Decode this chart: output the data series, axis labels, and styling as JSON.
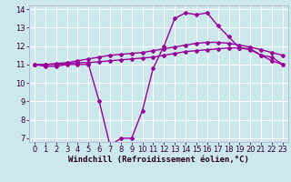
{
  "x": [
    0,
    1,
    2,
    3,
    4,
    5,
    6,
    7,
    8,
    9,
    10,
    11,
    12,
    13,
    14,
    15,
    16,
    17,
    18,
    19,
    20,
    21,
    22,
    23
  ],
  "line1": [
    11.0,
    10.9,
    10.9,
    11.0,
    11.0,
    11.0,
    9.0,
    6.6,
    7.0,
    7.0,
    8.5,
    10.8,
    12.0,
    13.5,
    13.8,
    13.7,
    13.8,
    13.1,
    12.5,
    11.9,
    11.8,
    11.5,
    11.4,
    11.0
  ],
  "line2": [
    11.0,
    11.0,
    11.0,
    11.05,
    11.1,
    11.1,
    11.15,
    11.2,
    11.25,
    11.3,
    11.35,
    11.4,
    11.5,
    11.6,
    11.7,
    11.75,
    11.8,
    11.85,
    11.9,
    11.9,
    11.85,
    11.5,
    11.2,
    11.0
  ],
  "line3": [
    11.0,
    11.0,
    11.05,
    11.1,
    11.2,
    11.3,
    11.4,
    11.5,
    11.55,
    11.6,
    11.65,
    11.75,
    11.85,
    11.95,
    12.05,
    12.15,
    12.2,
    12.2,
    12.15,
    12.05,
    11.95,
    11.8,
    11.65,
    11.5
  ],
  "color": "#990099",
  "bg_color": "#cce8ec",
  "grid_color": "#ffffff",
  "xlabel": "Windchill (Refroidissement éolien,°C)",
  "ylim": [
    6.8,
    14.2
  ],
  "xlim": [
    -0.5,
    23.5
  ],
  "yticks": [
    7,
    8,
    9,
    10,
    11,
    12,
    13,
    14
  ],
  "xticks": [
    0,
    1,
    2,
    3,
    4,
    5,
    6,
    7,
    8,
    9,
    10,
    11,
    12,
    13,
    14,
    15,
    16,
    17,
    18,
    19,
    20,
    21,
    22,
    23
  ],
  "marker": "D",
  "markersize": 2.0,
  "linewidth": 1.0,
  "tick_fontsize": 6.0,
  "xlabel_fontsize": 6.5
}
